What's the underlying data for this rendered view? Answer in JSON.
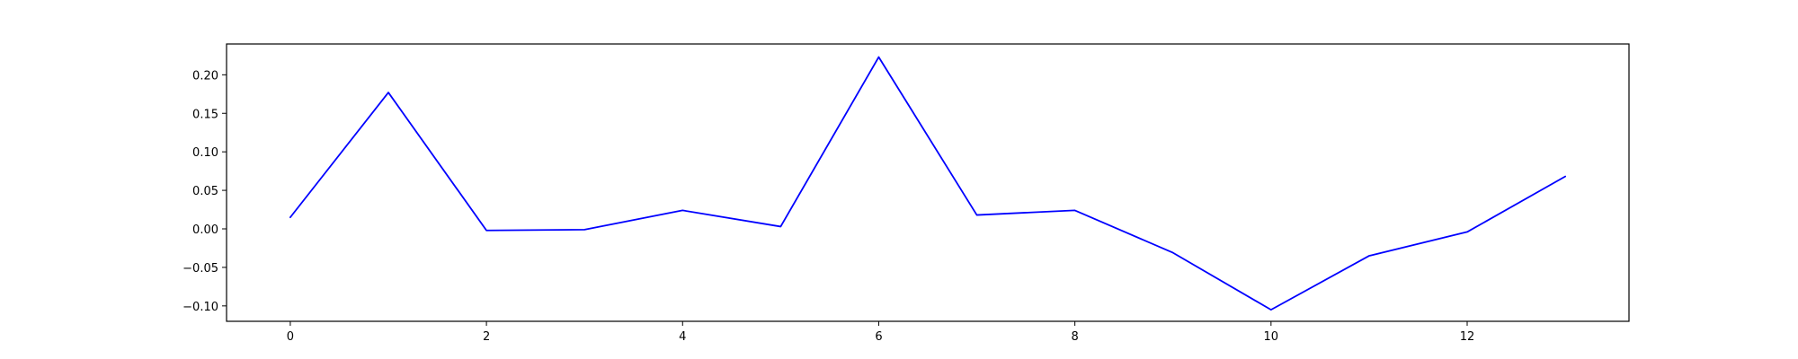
{
  "chart_data": {
    "type": "line",
    "title": "",
    "xlabel": "",
    "ylabel": "",
    "grid": false,
    "xlim": [
      -0.65,
      13.65
    ],
    "ylim": [
      -0.12,
      0.24
    ],
    "x_ticks": [
      0,
      2,
      4,
      6,
      8,
      10,
      12
    ],
    "x_tick_labels": [
      "0",
      "2",
      "4",
      "6",
      "8",
      "10",
      "12"
    ],
    "y_ticks": [
      -0.1,
      -0.05,
      0.0,
      0.05,
      0.1,
      0.15,
      0.2
    ],
    "y_tick_labels": [
      "−0.10",
      "−0.05",
      "0.00",
      "0.05",
      "0.10",
      "0.15",
      "0.20"
    ],
    "series": [
      {
        "color": "#0000ff",
        "x": [
          0,
          1,
          2,
          3,
          4,
          5,
          6,
          7,
          8,
          9,
          10,
          11,
          12,
          13
        ],
        "values": [
          0.015,
          0.177,
          -0.002,
          -0.001,
          0.024,
          0.003,
          0.223,
          0.018,
          0.024,
          -0.031,
          -0.105,
          -0.035,
          -0.004,
          0.068
        ]
      }
    ]
  }
}
